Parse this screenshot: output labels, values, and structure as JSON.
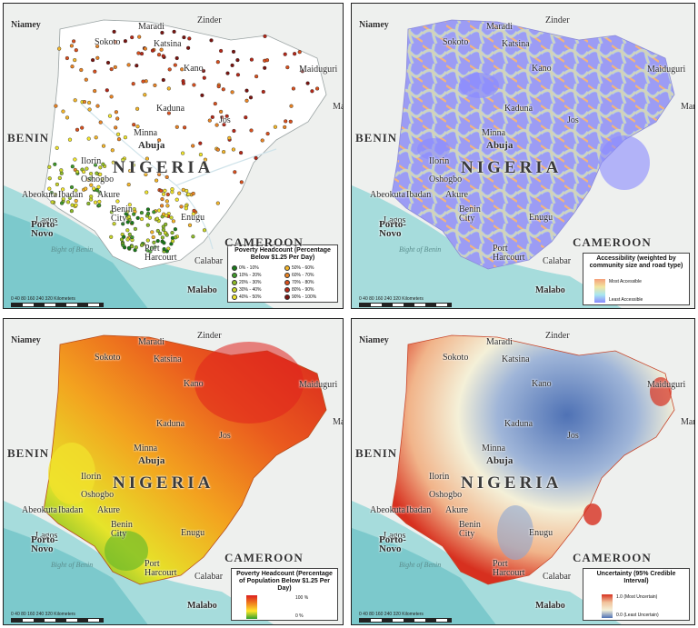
{
  "cities": {
    "niamey": "Niamey",
    "maradi": "Maradi",
    "zinder": "Zinder",
    "sokoto": "Sokoto",
    "katsina": "Katsina",
    "kano": "Kano",
    "maiduguri": "Maiduguri",
    "kaduna": "Kaduna",
    "jos": "Jos",
    "minna": "Minna",
    "abuja": "Abuja",
    "ilorin": "Ilorin",
    "oshogbo": "Oshogbo",
    "ibadan": "Ibadan",
    "akure": "Akure",
    "abeokuta": "Abeokuta",
    "lagos": "Lagos",
    "benin_city": "Benin City",
    "enugu": "Enugu",
    "port_harcourt": "Port Harcourt",
    "calabar": "Calabar",
    "malabo": "Malabo",
    "porto_novo": "Porto-Novo",
    "bight": "Bight of Benin"
  },
  "countries": {
    "benin": "BENIN",
    "nigeria": "NIGERIA",
    "cameroon": "CAMEROON",
    "mar": "Mar"
  },
  "scale": {
    "ticks": "0 40 80 160 240 320",
    "unit": "Kilometers"
  },
  "panels": {
    "poverty_points": {
      "legend_title": "Poverty Headcount (Percentage Below $1.25 Per Day)",
      "classes": [
        "0% - 10%",
        "10% - 20%",
        "20% - 30%",
        "30% - 40%",
        "40% - 50%",
        "50% - 60%",
        "60% - 70%",
        "70% - 80%",
        "80% - 90%",
        "90% - 100%"
      ],
      "class_colors": [
        "#1a7a1a",
        "#3f9a2a",
        "#8dbb2a",
        "#c9d52a",
        "#f1e52c",
        "#f4b62a",
        "#ea8424",
        "#d9501e",
        "#b62818",
        "#7a1410"
      ]
    },
    "accessibility": {
      "legend_title": "Accessibility (weighted by community size and road type)",
      "high_label": "Most Accessible",
      "low_label": "Least Accessible",
      "colors": [
        "#f5a07a",
        "#f2e6a0",
        "#a8e6f0",
        "#8a8aff"
      ]
    },
    "poverty_surface": {
      "legend_title": "Poverty Headcount (Percentage of Population Below $1.25 Per Day)",
      "high_label": "100 %",
      "low_label": "0 %",
      "colors": [
        "#dc1e1e",
        "#f07f1d",
        "#ffe52a",
        "#2fa02f"
      ]
    },
    "uncertainty": {
      "legend_title": "Uncertainty (95% Credible Interval)",
      "high_label": "1.0 (Most Uncertain)",
      "low_label": "0.0 (Least Uncertain)",
      "colors": [
        "#d7301f",
        "#f1c19a",
        "#f4f0d8",
        "#4f72b5"
      ]
    }
  }
}
